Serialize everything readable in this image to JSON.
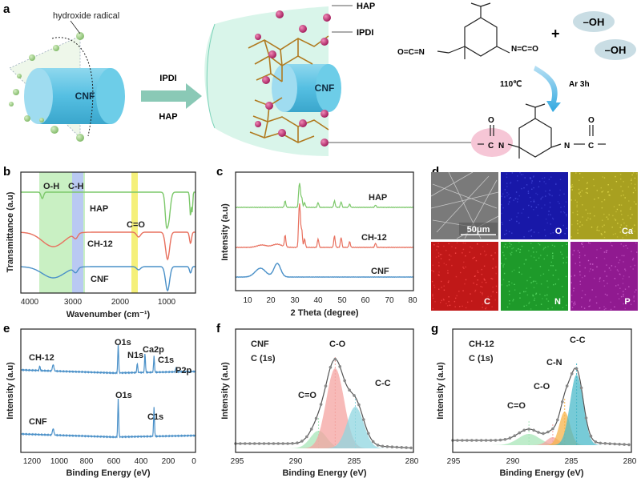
{
  "panel_a": {
    "label": "a",
    "hydroxide_label": "hydroxide radical",
    "cnf_label_1": "CNF",
    "cnf_label_2": "CNF",
    "arrow_top": "IPDI",
    "arrow_bottom": "HAP",
    "hap_label": "HAP",
    "ipdi_label": "IPDI",
    "oh_1": "–OH",
    "oh_2": "–OH",
    "plus": "+",
    "nco_left": "O=C=N",
    "nco_right": "N=C=O",
    "reaction_temp": "110℃",
    "reaction_cond": "Ar  3h",
    "product_left_co": "O",
    "product_left_c": "C",
    "product_left_n": "N",
    "product_right_co": "O",
    "product_right_c": "C",
    "product_right_n": "N"
  },
  "chart_data": [
    {
      "panel": "b",
      "type": "line",
      "title": "",
      "xlabel": "Wavenumber (cm⁻¹)",
      "ylabel": "Transmittance (a.u)",
      "xlim": [
        4000,
        500
      ],
      "xticks": [
        "4000",
        "3000",
        "2000",
        "1000"
      ],
      "bands": [
        {
          "label": "O-H",
          "from": 3700,
          "to": 3000,
          "color": "#c9f0c3"
        },
        {
          "label": "C-H",
          "from": 3000,
          "to": 2820,
          "color": "#b9c9f2"
        },
        {
          "label": "C=O",
          "from": 1760,
          "to": 1680,
          "color": "#f5f07a"
        }
      ],
      "series": [
        {
          "name": "HAP",
          "color": "#7cc86a"
        },
        {
          "name": "CH-12",
          "color": "#e8705e"
        },
        {
          "name": "CNF",
          "color": "#4a90c8"
        }
      ]
    },
    {
      "panel": "c",
      "type": "line",
      "xlabel": "2 Theta (degree)",
      "ylabel": "Intensity (a.u)",
      "xlim": [
        5,
        80
      ],
      "xticks": [
        "10",
        "20",
        "30",
        "40",
        "50",
        "60",
        "70",
        "80"
      ],
      "series": [
        {
          "name": "HAP",
          "color": "#7cc86a"
        },
        {
          "name": "CH-12",
          "color": "#e8705e"
        },
        {
          "name": "CNF",
          "color": "#4a90c8"
        }
      ]
    },
    {
      "panel": "e",
      "type": "line",
      "xlabel": "Binding Energy (eV)",
      "ylabel": "Intensity (a.u)",
      "xlim": [
        1200,
        0
      ],
      "xticks": [
        "1200",
        "1000",
        "800",
        "600",
        "400",
        "200",
        "0"
      ],
      "series": [
        {
          "name": "CH-12",
          "color": "#4a90c8"
        },
        {
          "name": "CNF",
          "color": "#4a90c8"
        }
      ],
      "peaks_ch12": [
        "O1s",
        "N1s",
        "Ca2p",
        "C1s",
        "P2p"
      ],
      "peaks_cnf": [
        "O1s",
        "C1s"
      ]
    },
    {
      "panel": "f",
      "type": "line",
      "xlabel": "Binding Energy (eV)",
      "ylabel": "Intensity (a.u)",
      "xlim": [
        295,
        280
      ],
      "xticks": [
        "295",
        "290",
        "285",
        "280"
      ],
      "sample": "CNF",
      "region": "C (1s)",
      "components": [
        {
          "name": "C=O",
          "center": 288.0,
          "color": "#a8e6b8"
        },
        {
          "name": "C-O",
          "center": 286.6,
          "color": "#f4a3a0"
        },
        {
          "name": "C-C",
          "center": 284.9,
          "color": "#8fd6e0"
        }
      ]
    },
    {
      "panel": "g",
      "type": "line",
      "xlabel": "Binding Energy (eV)",
      "ylabel": "Intensity (a.u)",
      "xlim": [
        295,
        280
      ],
      "xticks": [
        "295",
        "290",
        "285",
        "280"
      ],
      "sample": "CH-12",
      "region": "C (1s)",
      "components": [
        {
          "name": "C=O",
          "center": 288.6,
          "color": "#a8e6b8"
        },
        {
          "name": "C-O",
          "center": 286.6,
          "color": "#f4a3a0"
        },
        {
          "name": "C-N",
          "center": 285.6,
          "color": "#f6b34a"
        },
        {
          "name": "C-C",
          "center": 284.6,
          "color": "#49b9c9"
        }
      ]
    }
  ],
  "panel_d": {
    "label": "d",
    "scale": "50μm",
    "maps": [
      {
        "name": "O",
        "color": "#1818a8"
      },
      {
        "name": "Ca",
        "color": "#a8a020"
      },
      {
        "name": "C",
        "color": "#c01818"
      },
      {
        "name": "N",
        "color": "#1e9a2a"
      },
      {
        "name": "P",
        "color": "#901a90"
      }
    ]
  },
  "labels": {
    "b": "b",
    "c": "c",
    "e": "e",
    "f": "f",
    "g": "g"
  }
}
